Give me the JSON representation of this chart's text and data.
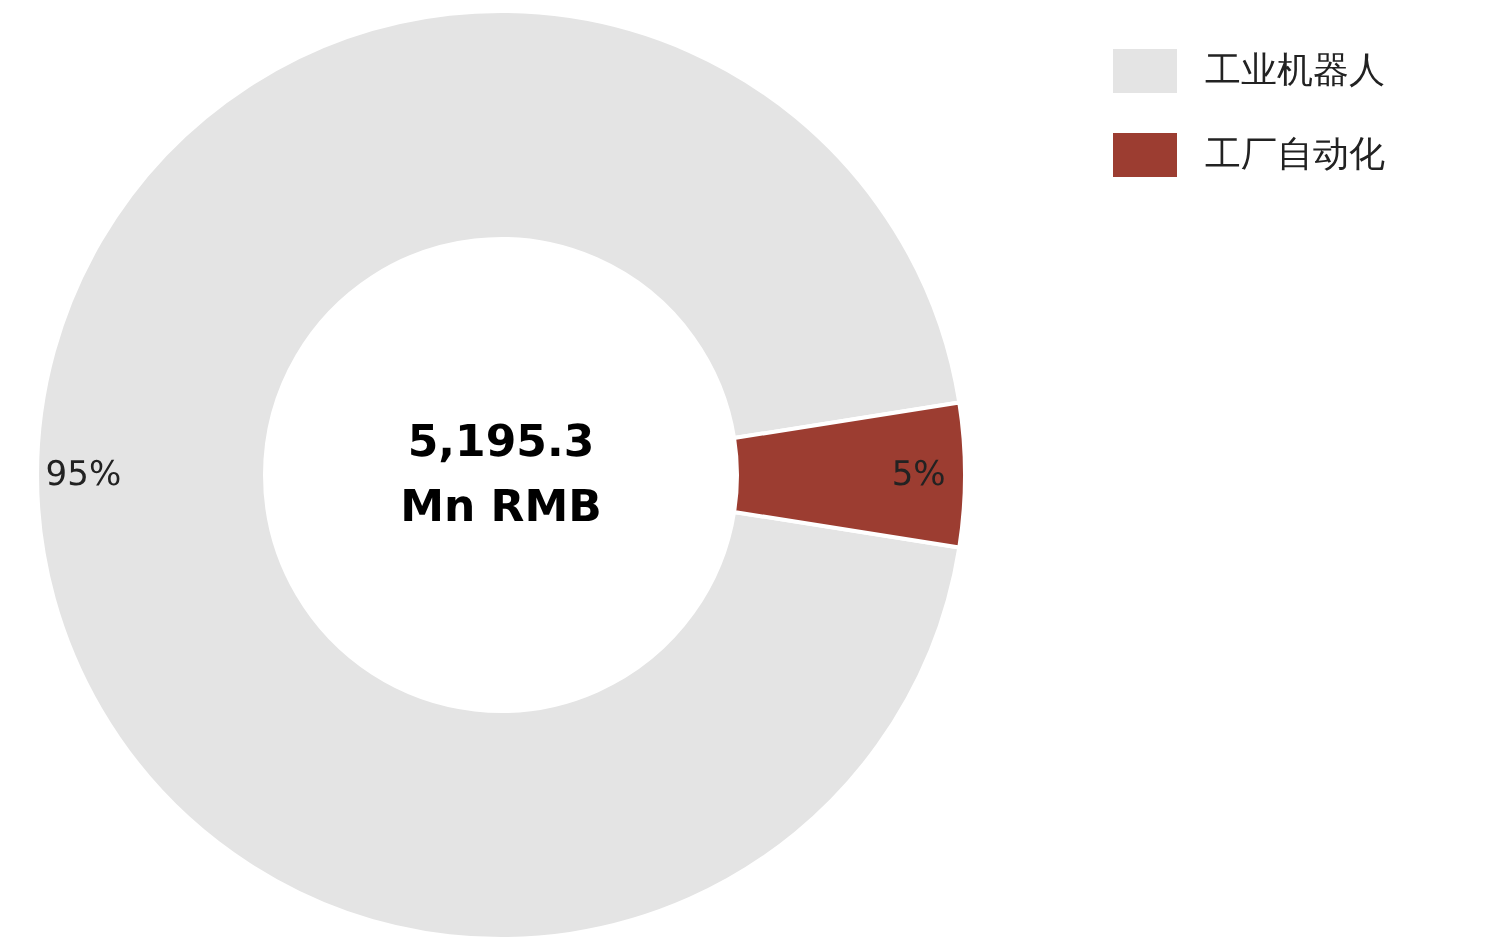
{
  "chart_data": {
    "type": "donut",
    "categories": [
      "工业机器人",
      "工厂自动化"
    ],
    "values": [
      95,
      5
    ],
    "colors": [
      "#e4e4e4",
      "#9c3d31"
    ],
    "value_labels": [
      "95%",
      "5%"
    ],
    "annotations": [
      "5,195.3\nMn RMB"
    ],
    "legend": "top right"
  }
}
